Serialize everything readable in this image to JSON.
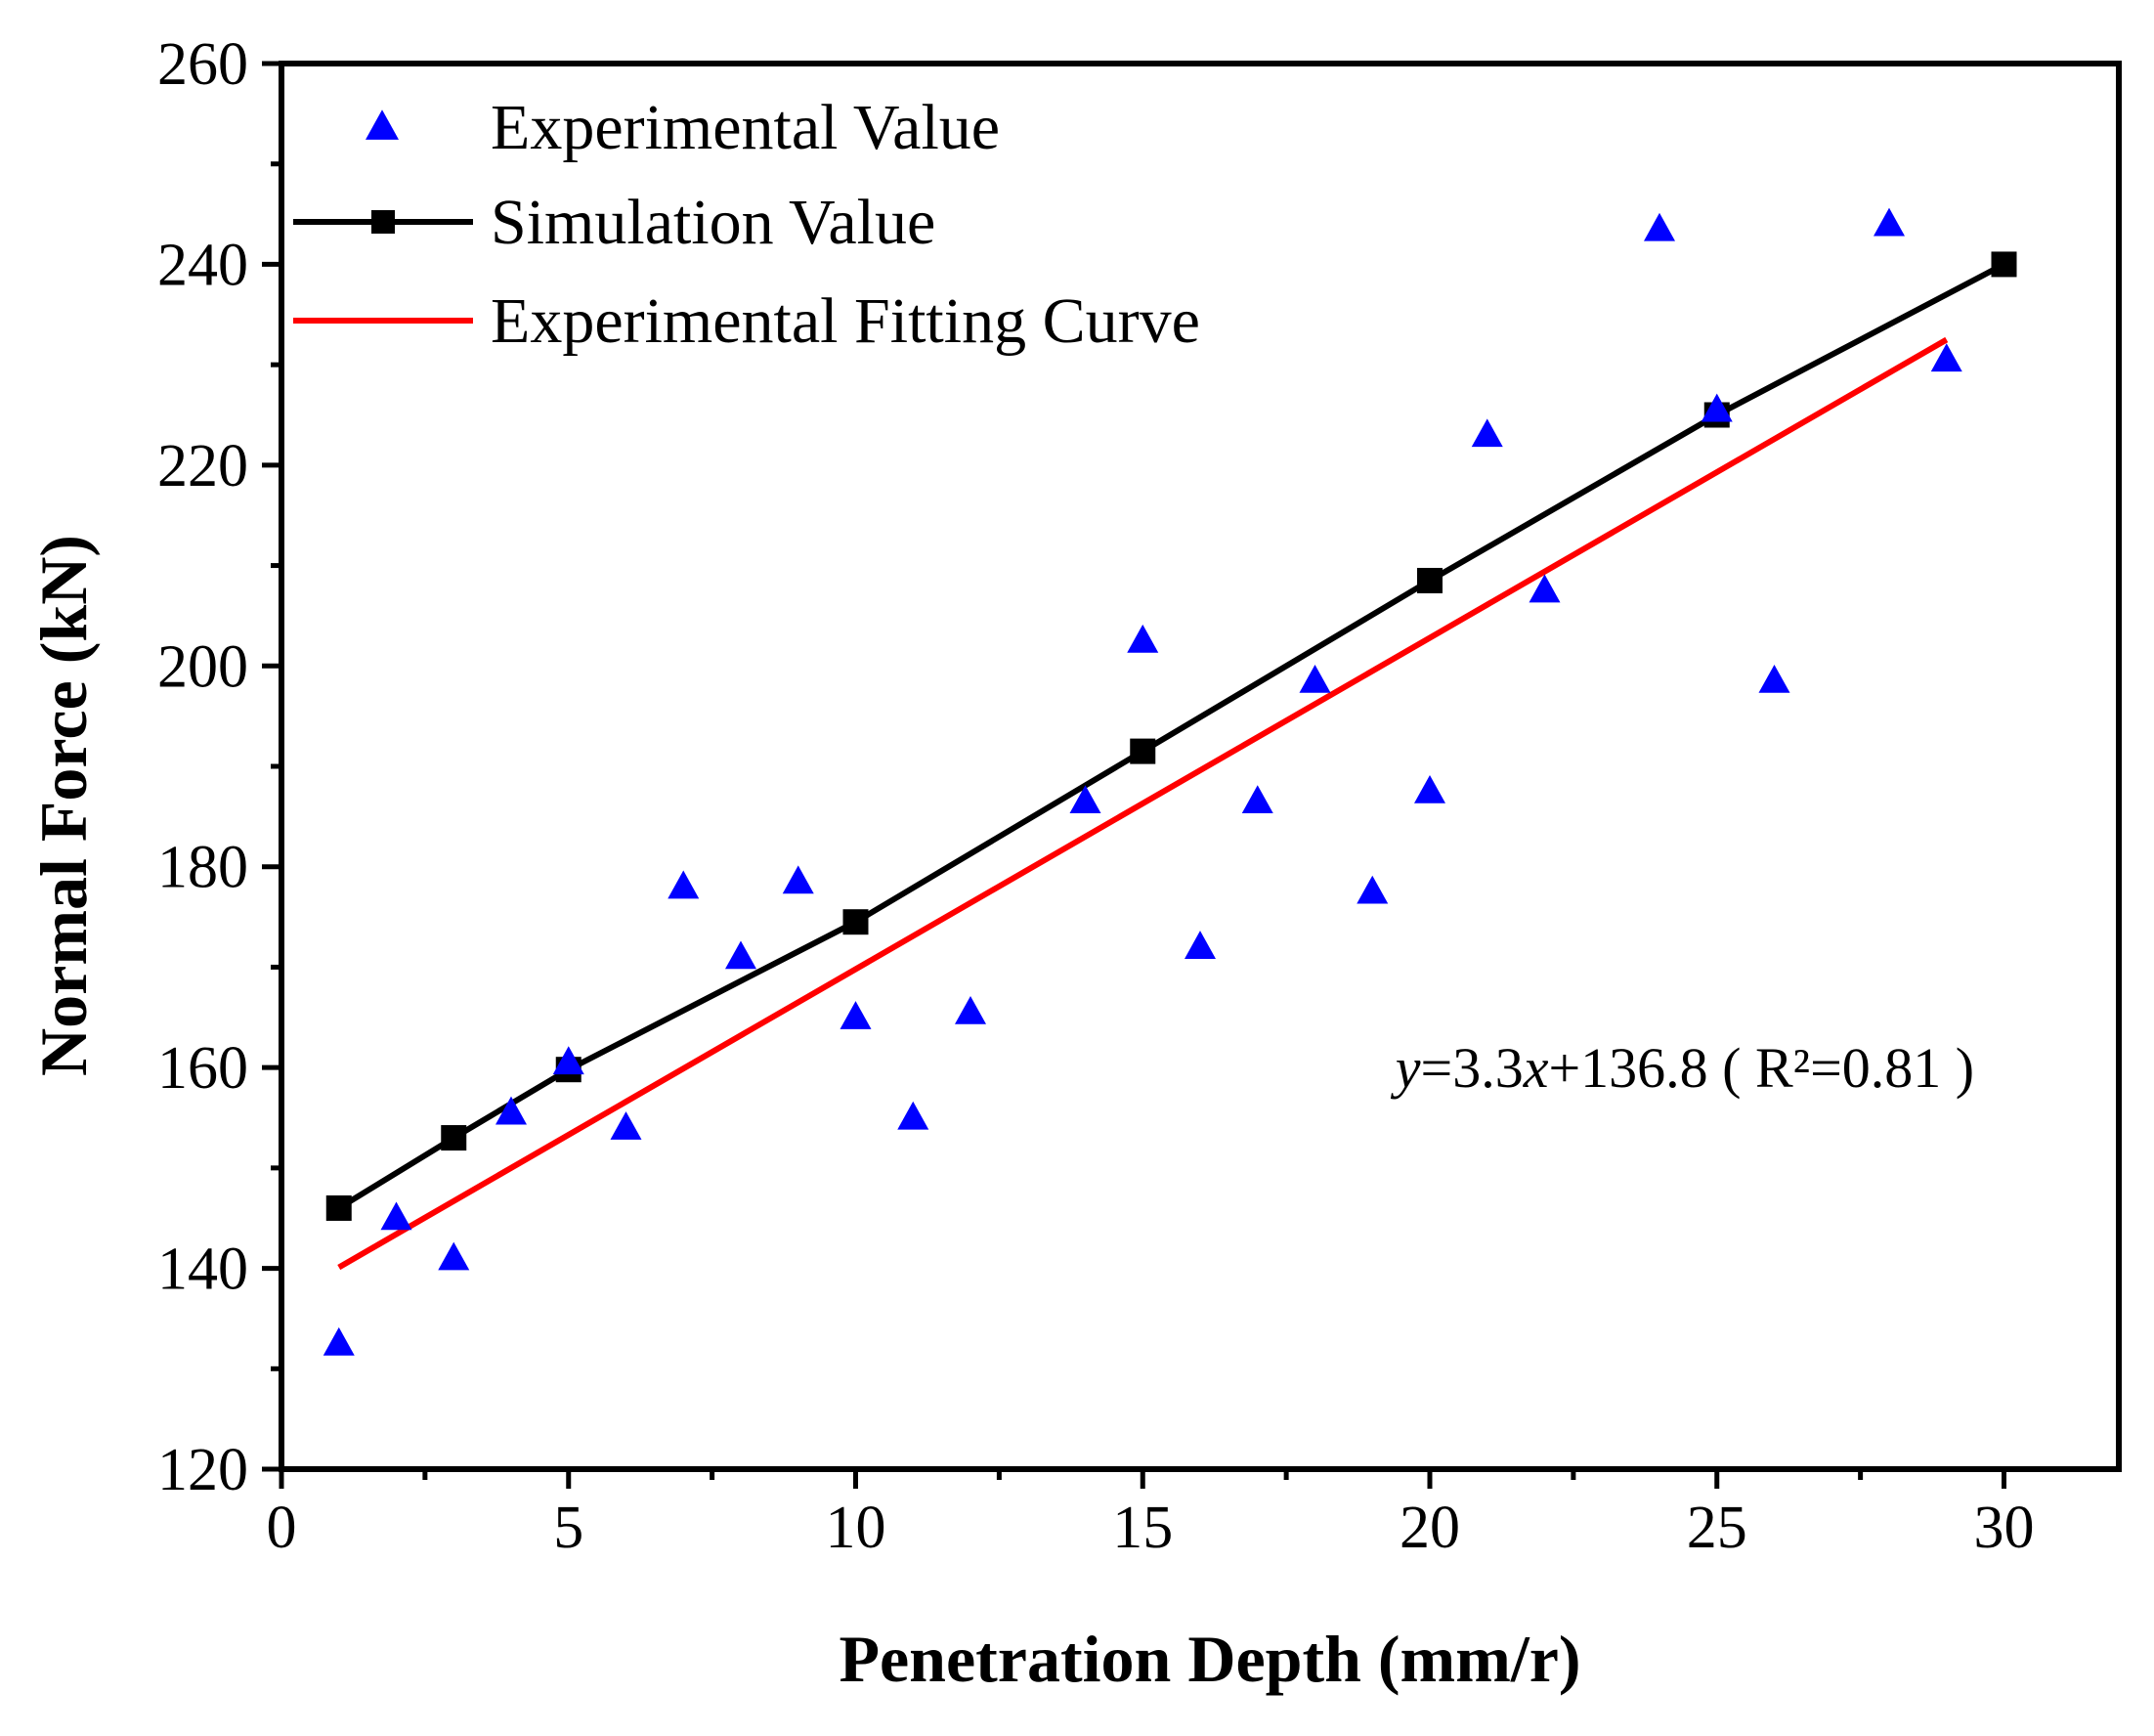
{
  "chart_data": {
    "type": "scatter",
    "title": "",
    "xlabel": "Penetration Depth (mm/r)",
    "ylabel": "Normal Force (kN)",
    "xlim": [
      0,
      32
    ],
    "ylim": [
      120,
      260
    ],
    "x_ticks": [
      0,
      5,
      10,
      15,
      20,
      25,
      30
    ],
    "y_ticks": [
      120,
      140,
      160,
      180,
      200,
      220,
      240,
      260
    ],
    "legend_position": "top-left",
    "series": [
      {
        "name": "Experimental Value",
        "type": "scatter",
        "marker": "triangle",
        "color": "#0000ff",
        "x": [
          1,
          2,
          3,
          4,
          5,
          6,
          7,
          8,
          9,
          10,
          11,
          12,
          14,
          15,
          16,
          17,
          18,
          19,
          20,
          21,
          22,
          24,
          25,
          26,
          28,
          29
        ],
        "y": [
          132.5,
          145,
          141,
          155.5,
          160.5,
          154,
          178,
          171,
          178.5,
          165,
          155,
          165.5,
          186.5,
          202.5,
          172,
          186.5,
          198.5,
          177.5,
          187.5,
          223,
          207.5,
          243.5,
          225.5,
          198.5,
          244,
          230.5
        ]
      },
      {
        "name": "Simulation Value",
        "type": "line",
        "marker": "square",
        "color": "#000000",
        "x": [
          1,
          3,
          5,
          10,
          15,
          20,
          25,
          30
        ],
        "y": [
          146,
          153,
          159.8,
          174.5,
          191.5,
          208.5,
          225,
          240
        ]
      },
      {
        "name": "Experimental Fitting Curve",
        "type": "line",
        "marker": "none",
        "color": "#ff0000",
        "slope": 3.3,
        "intercept": 136.8,
        "x_range": [
          1,
          29
        ]
      }
    ],
    "annotation": {
      "var_y": "y",
      "eq_part1": "=3.3",
      "var_x": "x",
      "eq_part2": "+136.8  ( R²=0.81 )",
      "x": 19.4,
      "y": 160
    }
  }
}
